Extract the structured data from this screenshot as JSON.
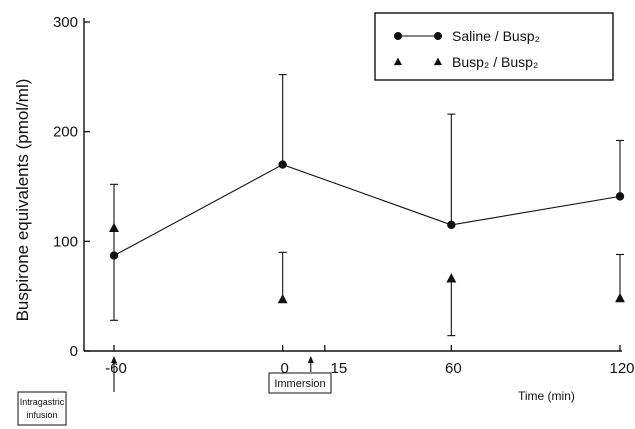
{
  "chart_data": {
    "type": "line",
    "ylabel": "Buspirone  equivalents  (pmol/ml)",
    "xlabel": "Time (min)",
    "x_tick_labels": [
      "-60",
      "0",
      "15",
      "60",
      "120"
    ],
    "x_ticks": [
      -60,
      0,
      15,
      60,
      120
    ],
    "y_ticks": [
      0,
      100,
      200,
      300
    ],
    "y_tick_labels": [
      "0",
      "100",
      "200",
      "300"
    ],
    "xlim": [
      -60,
      120
    ],
    "ylim": [
      0,
      300
    ],
    "grid": false,
    "legend_position": "top-right",
    "series": [
      {
        "name": "Saline / Busp₂",
        "marker": "circle",
        "line": true,
        "x": [
          -60,
          0,
          60,
          120
        ],
        "y": [
          87,
          170,
          115,
          141
        ],
        "err_high": [
          152,
          252,
          216,
          192
        ],
        "err_low": [
          28,
          null,
          null,
          null
        ]
      },
      {
        "name": "Busp₂ / Busp₂",
        "marker": "triangle",
        "line": false,
        "x": [
          -60,
          0,
          60,
          120
        ],
        "y": [
          112,
          47,
          66,
          48
        ],
        "err_high": [
          null,
          90,
          66,
          88
        ],
        "err_low": [
          null,
          null,
          14,
          null
        ]
      }
    ],
    "annotations": [
      {
        "text": "Intragastric infusion",
        "x": -60
      },
      {
        "text": "Immersion",
        "x": 10
      }
    ]
  }
}
